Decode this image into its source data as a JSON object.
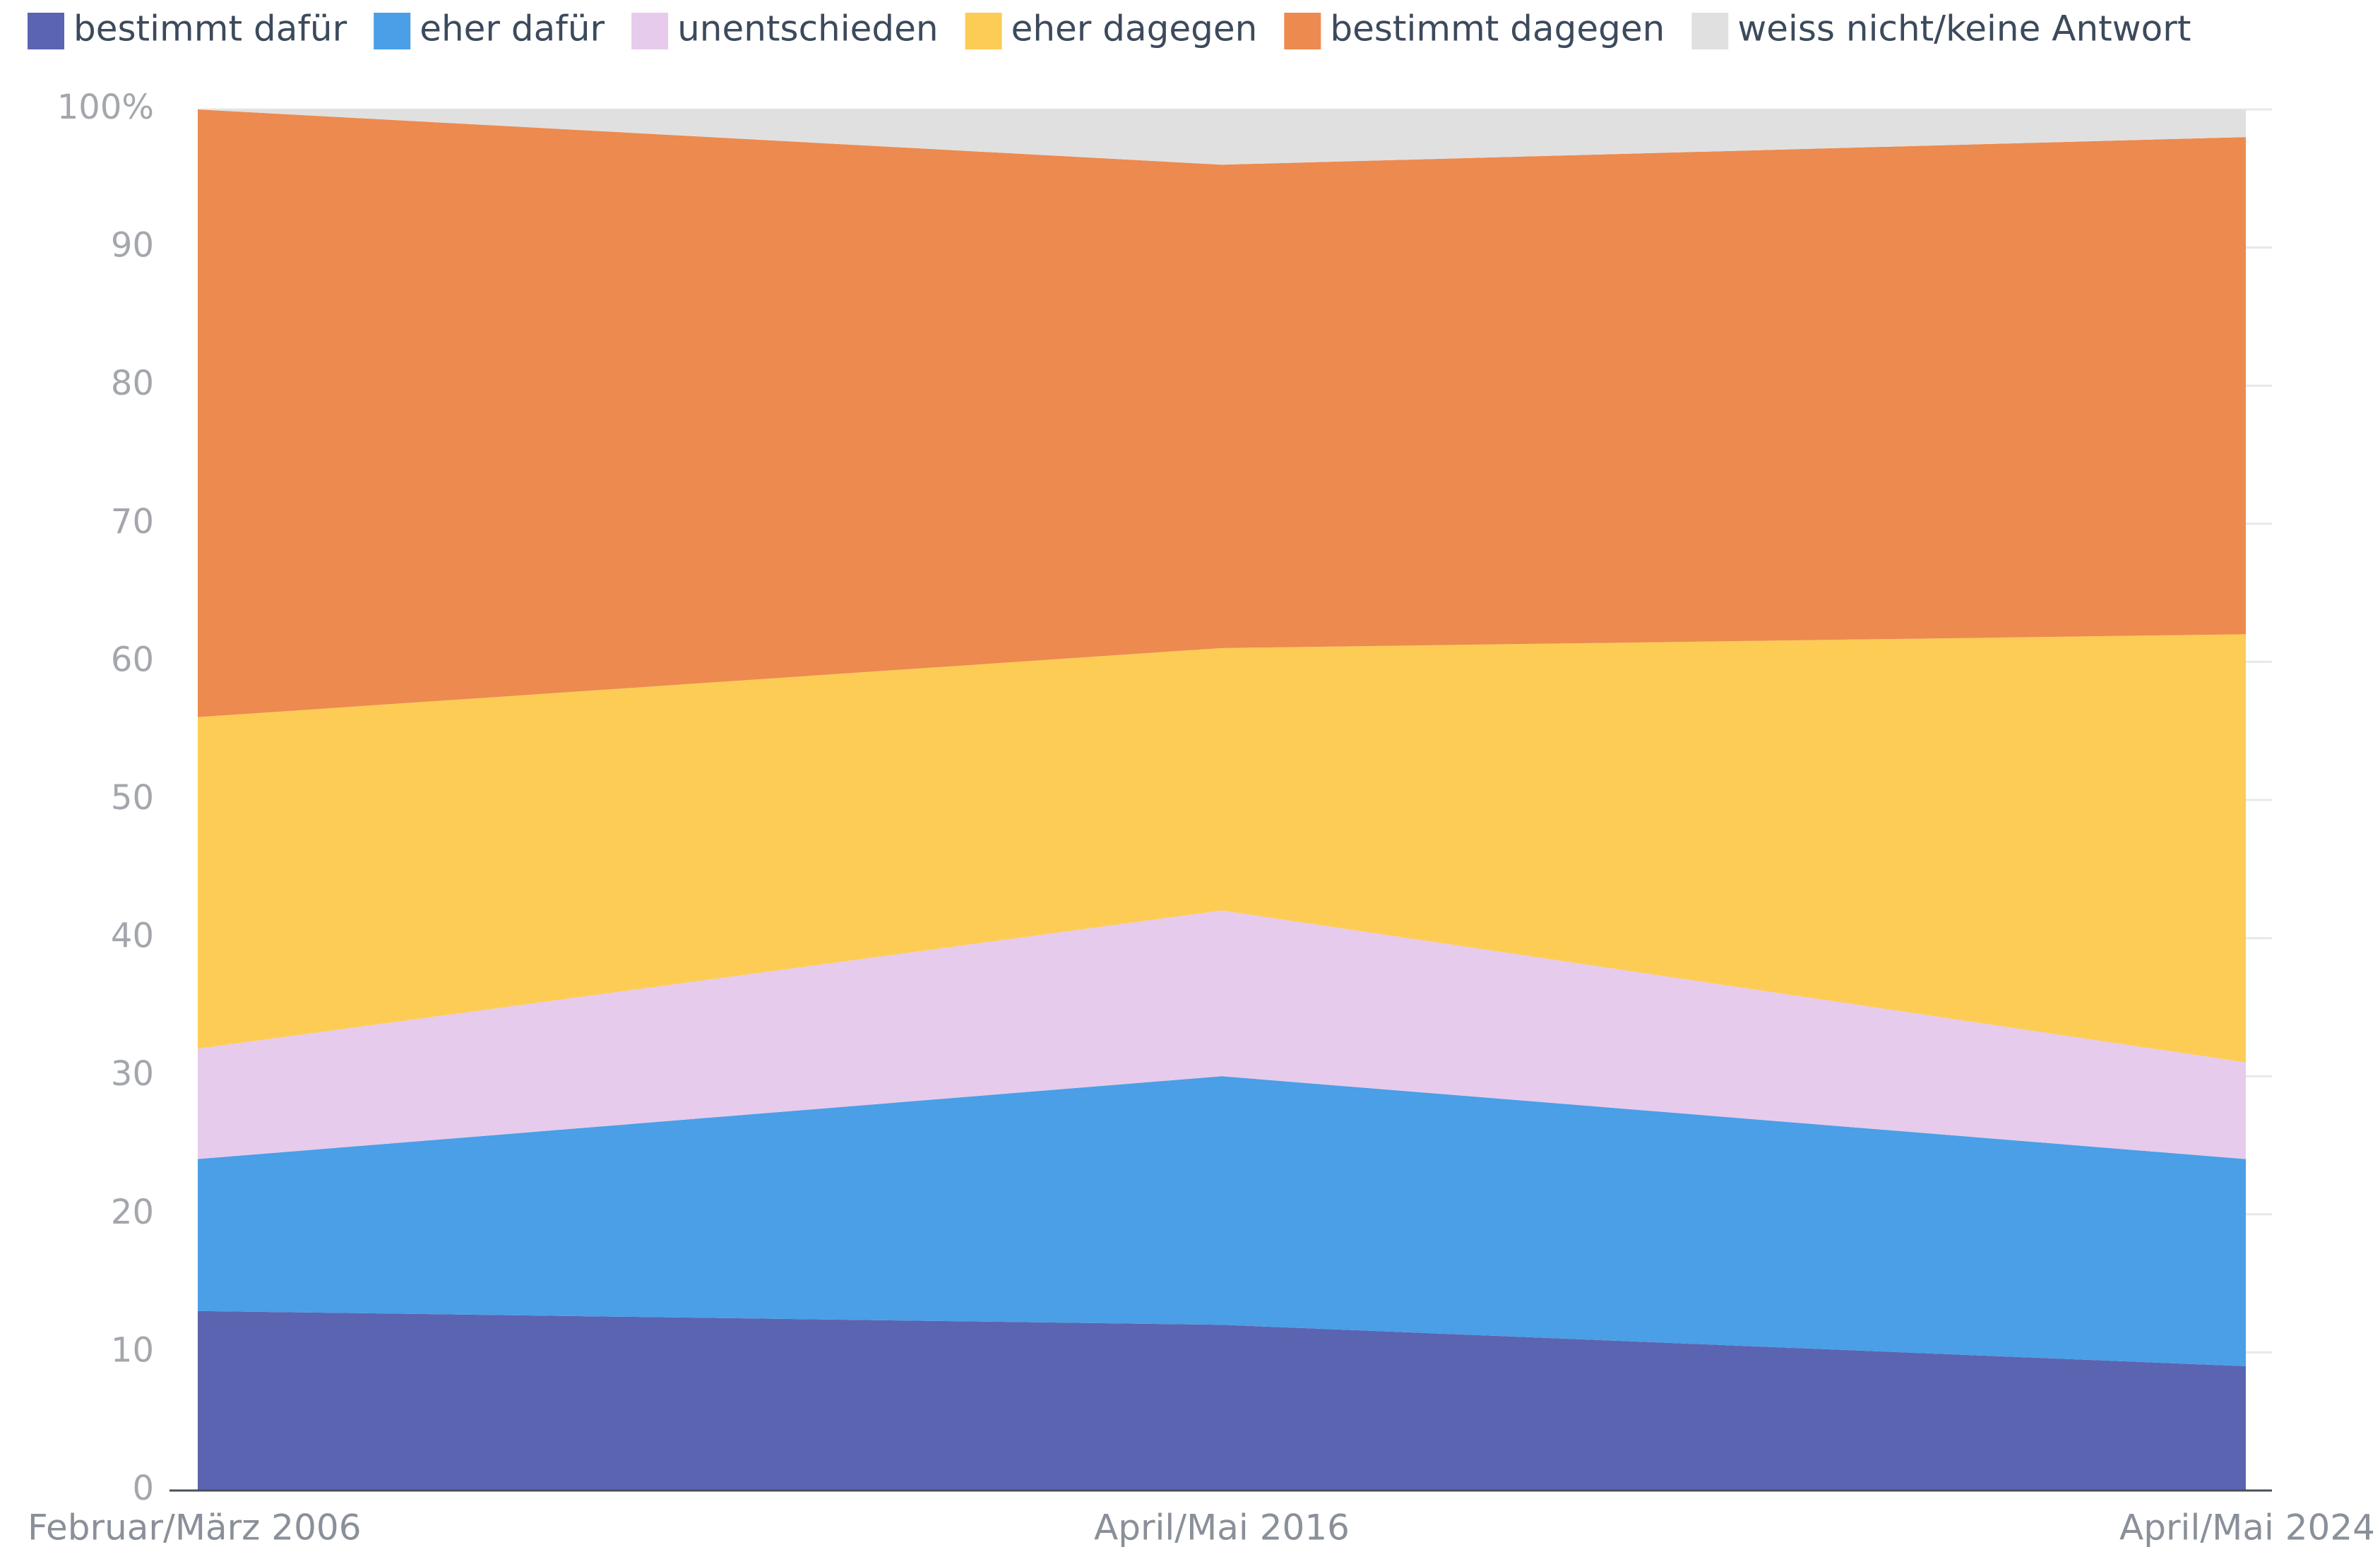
{
  "chart_data": {
    "type": "stacked_area",
    "categories": [
      "Februar/März 2006",
      "April/Mai 2016",
      "April/Mai 2024"
    ],
    "series": [
      {
        "name": "bestimmt dafür",
        "color": "#5b64b0",
        "values": [
          13,
          12,
          9
        ]
      },
      {
        "name": "eher dafür",
        "color": "#4a9fe6",
        "values": [
          11,
          18,
          15
        ]
      },
      {
        "name": "unentschieden",
        "color": "#e6cbec",
        "values": [
          8,
          12,
          7
        ]
      },
      {
        "name": "eher dagegen",
        "color": "#fdcc55",
        "values": [
          24,
          19,
          31
        ]
      },
      {
        "name": "bestimmt dagegen",
        "color": "#ed8a4f",
        "values": [
          44,
          35,
          36
        ]
      },
      {
        "name": "weiss nicht/keine Antwort",
        "color": "#e0e0e0",
        "values": [
          0,
          4,
          2
        ]
      }
    ],
    "ylim": [
      0,
      100
    ],
    "yticks": [
      0,
      10,
      20,
      30,
      40,
      50,
      60,
      70,
      80,
      90,
      {
        "value": 100,
        "label": "100%"
      }
    ],
    "grid": true,
    "legend": "top"
  }
}
